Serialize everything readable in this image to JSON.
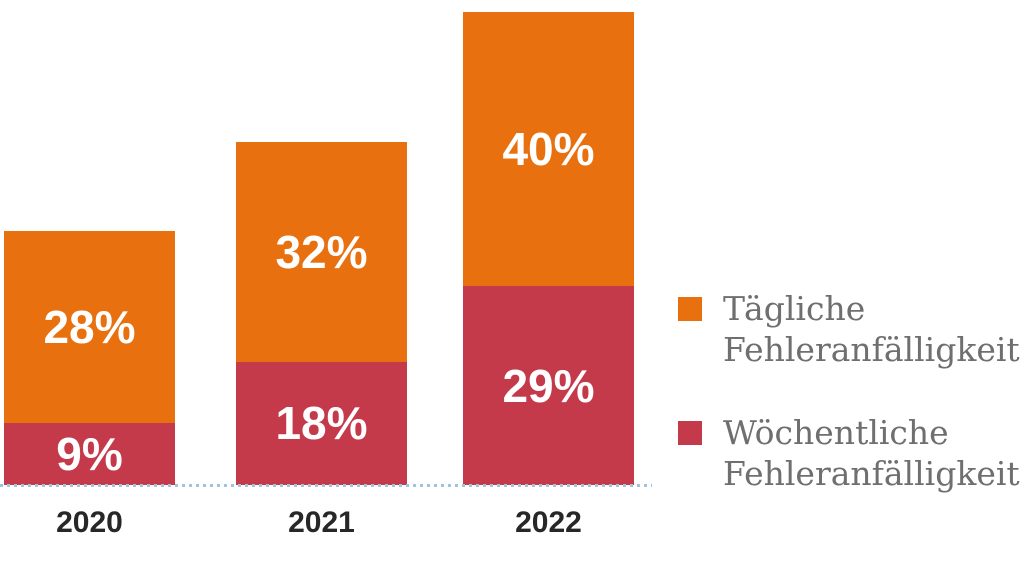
{
  "chart_data": {
    "type": "bar",
    "stacked": true,
    "title": "",
    "categories": [
      "2020",
      "2021",
      "2022"
    ],
    "series": [
      {
        "name": "Tägliche Fehleranfälligkeit",
        "color": "#E8700E",
        "values": [
          28,
          32,
          40
        ],
        "labels": [
          "28%",
          "32%",
          "40%"
        ]
      },
      {
        "name": "Wöchentliche Fehleranfälligkeit",
        "color": "#C43A4B",
        "values": [
          9,
          18,
          29
        ],
        "labels": [
          "9%",
          "18%",
          "29%"
        ]
      }
    ],
    "ylim": [
      0,
      69
    ],
    "grid": false,
    "legend_position": "right",
    "baseline_style": "dotted",
    "baseline_color": "#A4C2DB",
    "data_label_color": "#FFFFFF"
  },
  "legend": {
    "items": [
      {
        "line1": "Tägliche",
        "line2": "Fehleranfälligkeit",
        "color": "#E8700E"
      },
      {
        "line1": "Wöchentliche",
        "line2": "Fehleranfälligkeit",
        "color": "#C43A4B"
      }
    ]
  },
  "colors": {
    "background": "#FFFFFF",
    "year_label": "#272727",
    "legend_text": "#6F6F6F"
  }
}
